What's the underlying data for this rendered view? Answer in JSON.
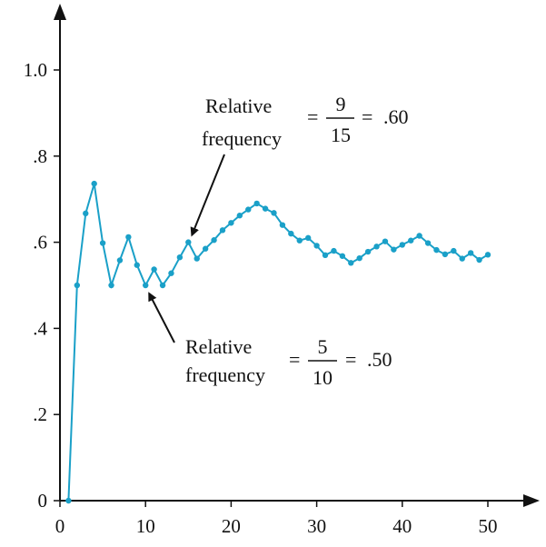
{
  "chart_data": {
    "type": "line",
    "xlim": [
      0,
      55
    ],
    "ylim": [
      0,
      1.1
    ],
    "xticks": [
      {
        "value": 0,
        "label": "0"
      },
      {
        "value": 10,
        "label": "10"
      },
      {
        "value": 20,
        "label": "20"
      },
      {
        "value": 30,
        "label": "30"
      },
      {
        "value": 40,
        "label": "40"
      },
      {
        "value": 50,
        "label": "50"
      }
    ],
    "yticks": [
      {
        "value": 0,
        "label": "0"
      },
      {
        "value": 0.2,
        "label": ".2"
      },
      {
        "value": 0.4,
        "label": ".4"
      },
      {
        "value": 0.6,
        "label": ".6"
      },
      {
        "value": 0.8,
        "label": ".8"
      },
      {
        "value": 1.0,
        "label": "1.0"
      }
    ],
    "grid": false,
    "series": [
      {
        "color": "#1aa0c8",
        "x": [
          1,
          2,
          3,
          4,
          5,
          6,
          7,
          8,
          9,
          10,
          11,
          12,
          13,
          14,
          15,
          16,
          17,
          18,
          19,
          20,
          21,
          22,
          23,
          24,
          25,
          26,
          27,
          28,
          29,
          30,
          31,
          32,
          33,
          34,
          35,
          36,
          37,
          38,
          39,
          40,
          41,
          42,
          43,
          44,
          45,
          46,
          47,
          48,
          49,
          50
        ],
        "y": [
          0.0,
          0.5,
          0.667,
          0.736,
          0.598,
          0.5,
          0.558,
          0.612,
          0.547,
          0.5,
          0.537,
          0.5,
          0.528,
          0.565,
          0.6,
          0.562,
          0.585,
          0.605,
          0.628,
          0.645,
          0.662,
          0.676,
          0.69,
          0.678,
          0.668,
          0.64,
          0.62,
          0.604,
          0.61,
          0.592,
          0.57,
          0.58,
          0.568,
          0.552,
          0.563,
          0.578,
          0.59,
          0.602,
          0.583,
          0.594,
          0.604,
          0.615,
          0.598,
          0.582,
          0.572,
          0.58,
          0.562,
          0.575,
          0.559,
          0.571
        ]
      }
    ],
    "annotations": [
      {
        "id": "ann15",
        "line1": "Relative",
        "line2": "frequency",
        "numerator": "9",
        "denominator": "15",
        "result": ".60",
        "target_x": 15,
        "target_y": 0.6
      },
      {
        "id": "ann10",
        "line1": "Relative",
        "line2": "frequency",
        "numerator": "5",
        "denominator": "10",
        "result": ".50",
        "target_x": 10,
        "target_y": 0.5
      }
    ]
  }
}
